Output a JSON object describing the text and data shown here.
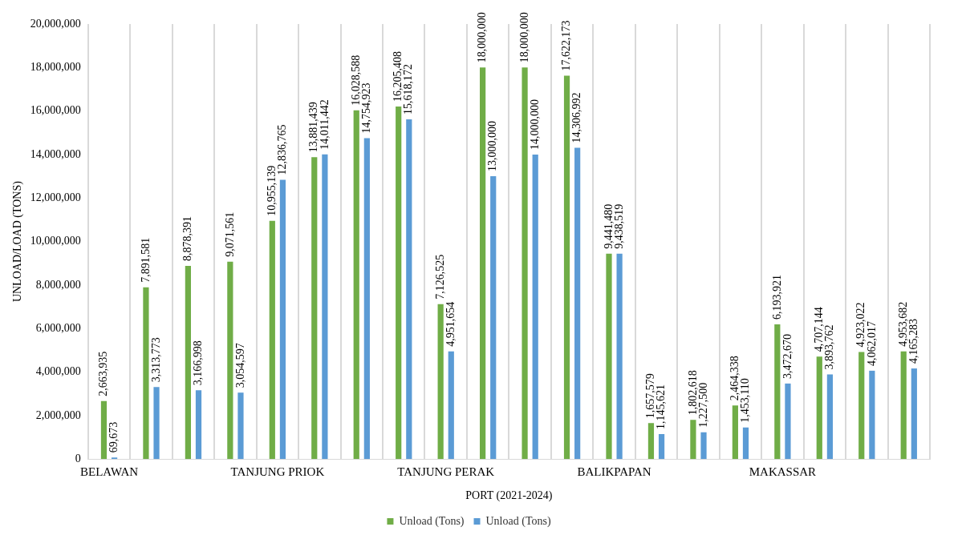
{
  "chart_data": {
    "type": "bar",
    "xlabel": "PORT (2021-2024)",
    "ylabel": "UNLOAD/LOAD (TONS)",
    "categories": [
      "BELAWAN",
      null,
      null,
      null,
      "TANJUNG PRIOK",
      null,
      null,
      null,
      "TANJUNG PERAK",
      null,
      null,
      null,
      "BALIKPAPAN",
      null,
      null,
      null,
      "MAKASSAR",
      null,
      null,
      null
    ],
    "series": [
      {
        "name": "Unload (Tons)",
        "color": "#70ad47",
        "values": [
          2663935,
          7891581,
          8878391,
          9071561,
          10955139,
          13881439,
          16028588,
          16205408,
          7126525,
          18000000,
          18000000,
          17622173,
          9441480,
          1657579,
          1802618,
          2464338,
          6193921,
          4707144,
          4923022,
          4953682
        ],
        "value_labels": [
          "2,663,935",
          "7,891,581",
          "8,878,391",
          "9,071,561",
          "10,955,139",
          "13,881,439",
          "16,028,588",
          "16,205,408",
          "7,126,525",
          "18,000,000",
          "18,000,000",
          "17,622,173",
          "9,441,480",
          "1,657,579",
          "1,802,618",
          "2,464,338",
          "6,193,921",
          "4,707,144",
          "4,923,022",
          "4,953,682"
        ]
      },
      {
        "name": "Unload (Tons)",
        "color": "#5b9bd5",
        "values": [
          69673,
          3313773,
          3166998,
          3054597,
          12836765,
          14011442,
          14754923,
          15618172,
          4951654,
          13000000,
          14000000,
          14306992,
          9438519,
          1145621,
          1227500,
          1453110,
          3472670,
          3893762,
          4062017,
          4165283
        ],
        "value_labels": [
          "69,673",
          "3,313,773",
          "3,166,998",
          "3,054,597",
          "12,836,765",
          "14,011,442",
          "14,754,923",
          "15,618,172",
          "4,951,654",
          "13,000,000",
          "14,000,000",
          "14,306,992",
          "9,438,519",
          "1,145,621",
          "1,227,500",
          "1,453,110",
          "3,472,670",
          "3,893,762",
          "4,062,017",
          "4,165,283"
        ]
      }
    ],
    "ylim": [
      0,
      20000000
    ],
    "yticks": [
      {
        "value": 0,
        "label": "0"
      },
      {
        "value": 2000000,
        "label": "2,000,000"
      },
      {
        "value": 4000000,
        "label": "4,000,000"
      },
      {
        "value": 6000000,
        "label": "6,000,000"
      },
      {
        "value": 8000000,
        "label": "8,000,000"
      },
      {
        "value": 10000000,
        "label": "10,000,000"
      },
      {
        "value": 12000000,
        "label": "12,000,000"
      },
      {
        "value": 14000000,
        "label": "14,000,000"
      },
      {
        "value": 16000000,
        "label": "16,000,000"
      },
      {
        "value": 18000000,
        "label": "18,000,000"
      },
      {
        "value": 20000000,
        "label": "20,000,000"
      }
    ],
    "grid": "x",
    "legend": "bottom"
  }
}
